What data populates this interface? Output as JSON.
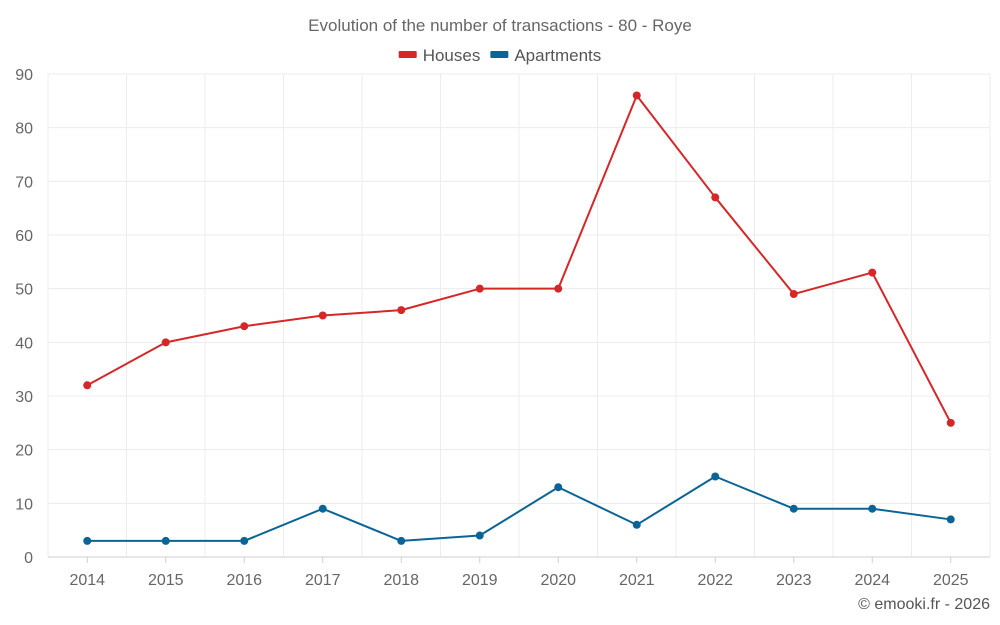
{
  "chart_data": {
    "type": "line",
    "title": "Evolution of the number of transactions - 80 - Roye",
    "categories": [
      "2014",
      "2015",
      "2016",
      "2017",
      "2018",
      "2019",
      "2020",
      "2021",
      "2022",
      "2023",
      "2024",
      "2025"
    ],
    "series": [
      {
        "name": "Houses",
        "color": "#d62728",
        "values": [
          32,
          40,
          43,
          45,
          46,
          50,
          50,
          86,
          67,
          49,
          53,
          25
        ]
      },
      {
        "name": "Apartments",
        "color": "#0b6496",
        "values": [
          3,
          3,
          3,
          9,
          3,
          4,
          13,
          6,
          15,
          9,
          9,
          7
        ]
      }
    ],
    "ylim": [
      0,
      90
    ],
    "yticks": [
      0,
      10,
      20,
      30,
      40,
      50,
      60,
      70,
      80,
      90
    ],
    "grid": true,
    "legend": "top-center",
    "xlabel": "",
    "ylabel": ""
  },
  "credit": "© emooki.fr - 2026"
}
